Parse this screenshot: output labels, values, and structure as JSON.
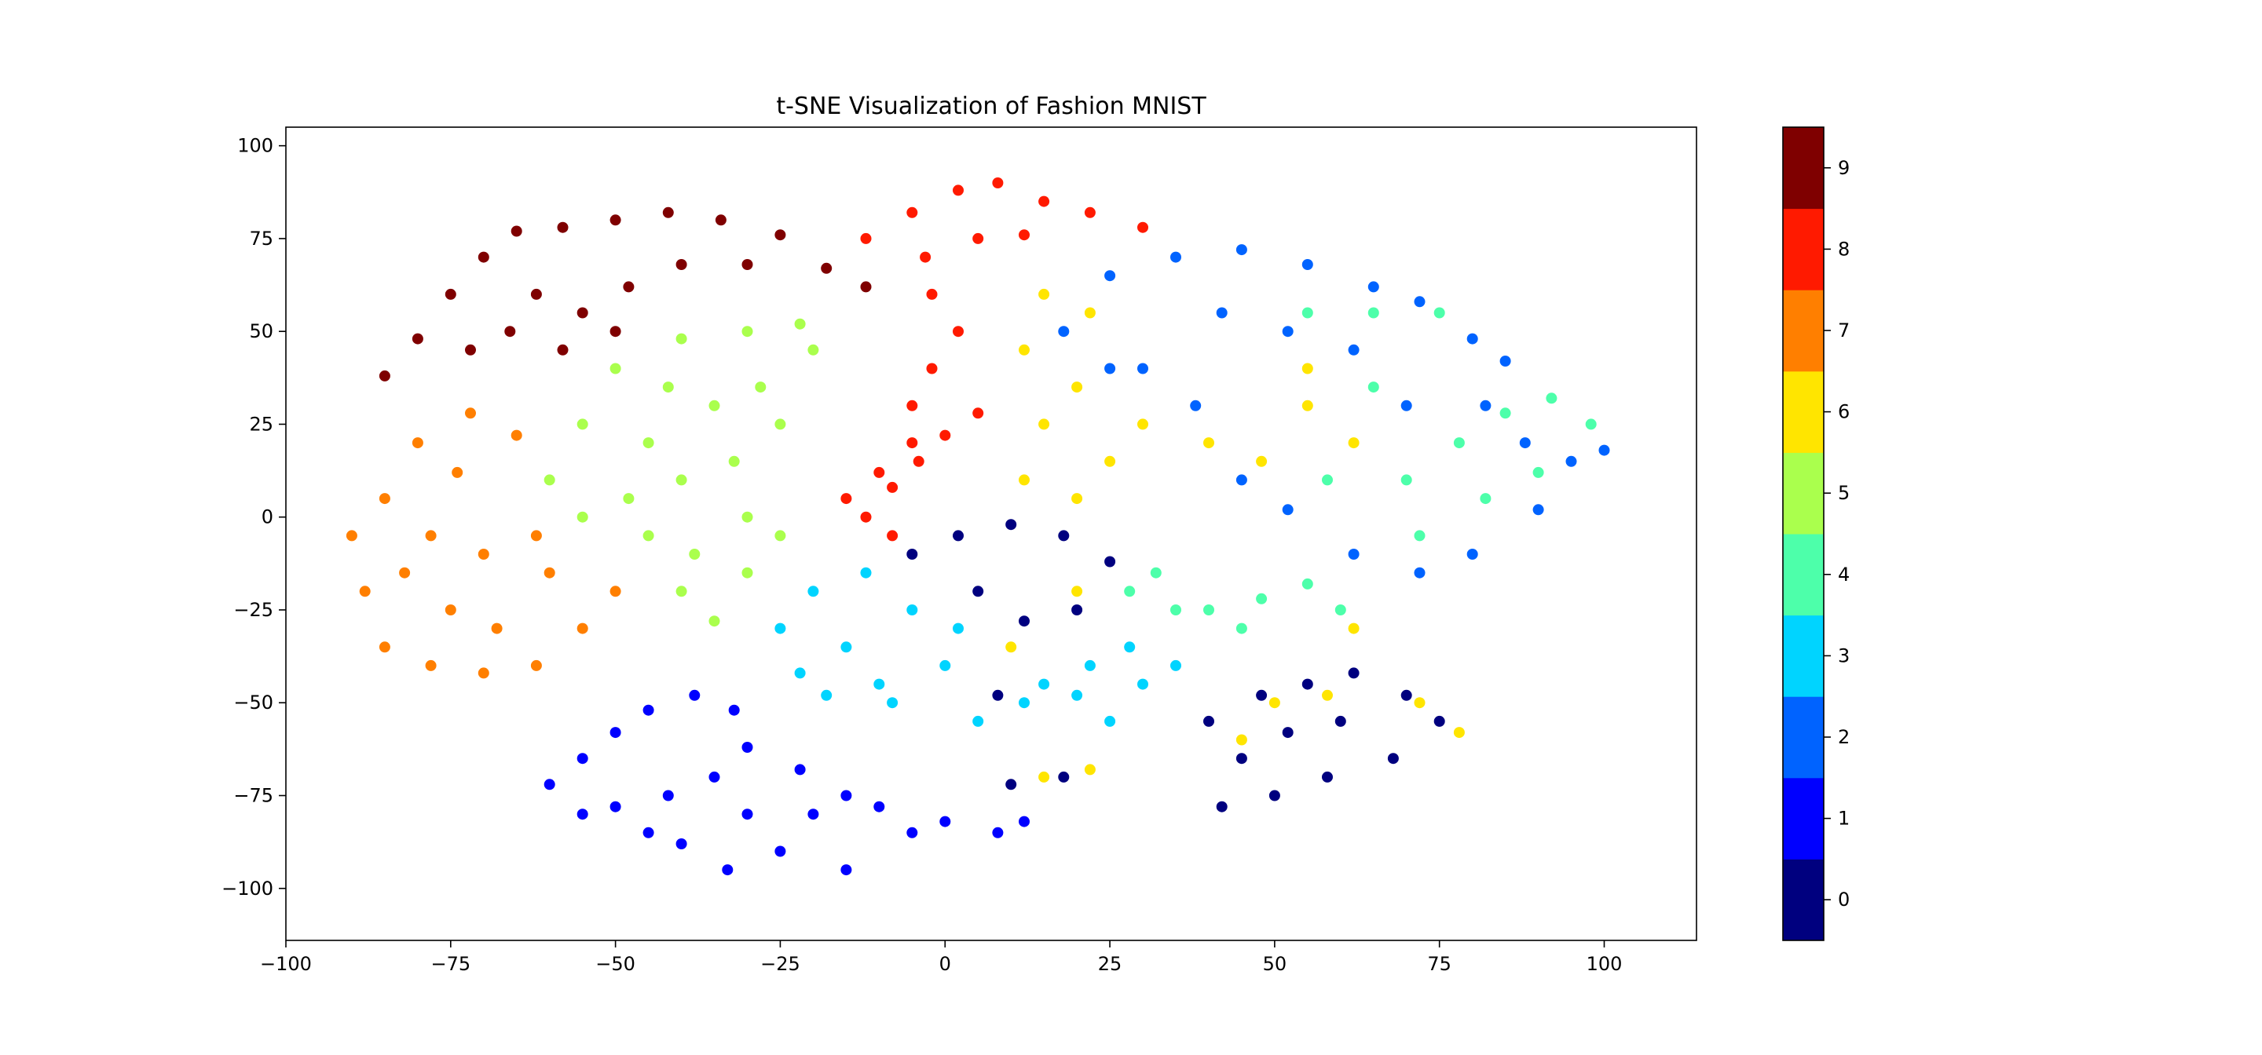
{
  "chart_data": {
    "type": "scatter",
    "title": "t-SNE Visualization of Fashion MNIST",
    "xlabel": "",
    "ylabel": "",
    "xlim": [
      -100,
      114
    ],
    "ylim": [
      -114,
      105
    ],
    "x_ticks": [
      -100,
      -75,
      -50,
      -25,
      0,
      25,
      50,
      75,
      100
    ],
    "x_tick_labels": [
      "−100",
      "−75",
      "−50",
      "−25",
      "0",
      "25",
      "50",
      "75",
      "100"
    ],
    "y_ticks": [
      -100,
      -75,
      -50,
      -25,
      0,
      25,
      50,
      75,
      100
    ],
    "y_tick_labels": [
      "−100",
      "−75",
      "−50",
      "−25",
      "0",
      "25",
      "50",
      "75",
      "100"
    ],
    "grid": false,
    "legend": "none",
    "colorbar": {
      "labels": [
        "0",
        "1",
        "2",
        "3",
        "4",
        "5",
        "6",
        "7",
        "8",
        "9"
      ],
      "colors": [
        "#00007f",
        "#0000ff",
        "#0063ff",
        "#00d4ff",
        "#4dffaa",
        "#aaff4d",
        "#ffe500",
        "#ff7f00",
        "#ff1a00",
        "#7f0000"
      ]
    },
    "clusters": [
      {
        "label": 9,
        "points": [
          [
            -85,
            38
          ],
          [
            -80,
            48
          ],
          [
            -75,
            60
          ],
          [
            -70,
            70
          ],
          [
            -65,
            77
          ],
          [
            -58,
            78
          ],
          [
            -50,
            80
          ],
          [
            -42,
            82
          ],
          [
            -34,
            80
          ],
          [
            -25,
            76
          ],
          [
            -18,
            67
          ],
          [
            -12,
            62
          ],
          [
            -62,
            60
          ],
          [
            -55,
            55
          ],
          [
            -48,
            62
          ],
          [
            -40,
            68
          ],
          [
            -30,
            68
          ],
          [
            -72,
            45
          ],
          [
            -66,
            50
          ],
          [
            -58,
            45
          ],
          [
            -50,
            50
          ]
        ]
      },
      {
        "label": 5,
        "points": [
          [
            -50,
            40
          ],
          [
            -42,
            35
          ],
          [
            -35,
            30
          ],
          [
            -28,
            35
          ],
          [
            -20,
            45
          ],
          [
            -25,
            25
          ],
          [
            -32,
            15
          ],
          [
            -40,
            10
          ],
          [
            -48,
            5
          ],
          [
            -55,
            0
          ],
          [
            -45,
            -5
          ],
          [
            -38,
            -10
          ],
          [
            -30,
            -15
          ],
          [
            -40,
            -20
          ],
          [
            -35,
            -28
          ],
          [
            -30,
            0
          ],
          [
            -25,
            -5
          ],
          [
            -45,
            20
          ],
          [
            -55,
            25
          ],
          [
            -60,
            10
          ],
          [
            -30,
            50
          ],
          [
            -40,
            48
          ],
          [
            -22,
            52
          ]
        ]
      },
      {
        "label": 7,
        "points": [
          [
            -90,
            -5
          ],
          [
            -88,
            -20
          ],
          [
            -85,
            -35
          ],
          [
            -78,
            -40
          ],
          [
            -70,
            -42
          ],
          [
            -62,
            -40
          ],
          [
            -55,
            -30
          ],
          [
            -50,
            -20
          ],
          [
            -60,
            -15
          ],
          [
            -70,
            -10
          ],
          [
            -78,
            -5
          ],
          [
            -85,
            5
          ],
          [
            -80,
            20
          ],
          [
            -72,
            28
          ],
          [
            -65,
            22
          ],
          [
            -75,
            -25
          ],
          [
            -68,
            -30
          ],
          [
            -82,
            -15
          ],
          [
            -62,
            -5
          ],
          [
            -74,
            12
          ]
        ]
      },
      {
        "label": 8,
        "points": [
          [
            -12,
            0
          ],
          [
            -8,
            8
          ],
          [
            -4,
            15
          ],
          [
            0,
            22
          ],
          [
            5,
            28
          ],
          [
            -2,
            40
          ],
          [
            2,
            50
          ],
          [
            -5,
            30
          ],
          [
            -10,
            12
          ],
          [
            -15,
            5
          ],
          [
            -8,
            -5
          ],
          [
            -5,
            20
          ],
          [
            -2,
            60
          ],
          [
            -12,
            75
          ],
          [
            -5,
            82
          ],
          [
            2,
            88
          ],
          [
            8,
            90
          ],
          [
            15,
            85
          ],
          [
            22,
            82
          ],
          [
            30,
            78
          ],
          [
            12,
            76
          ],
          [
            5,
            75
          ],
          [
            -3,
            70
          ]
        ]
      },
      {
        "label": 1,
        "points": [
          [
            -60,
            -72
          ],
          [
            -55,
            -65
          ],
          [
            -50,
            -58
          ],
          [
            -45,
            -52
          ],
          [
            -38,
            -48
          ],
          [
            -32,
            -52
          ],
          [
            -30,
            -62
          ],
          [
            -35,
            -70
          ],
          [
            -42,
            -75
          ],
          [
            -50,
            -78
          ],
          [
            -55,
            -80
          ],
          [
            -40,
            -88
          ],
          [
            -33,
            -95
          ],
          [
            -25,
            -90
          ],
          [
            -20,
            -80
          ],
          [
            -15,
            -75
          ],
          [
            -10,
            -78
          ],
          [
            -15,
            -95
          ],
          [
            -5,
            -85
          ],
          [
            0,
            -82
          ],
          [
            8,
            -85
          ],
          [
            12,
            -82
          ],
          [
            -45,
            -85
          ],
          [
            -30,
            -80
          ],
          [
            -22,
            -68
          ]
        ]
      },
      {
        "label": 3,
        "points": [
          [
            -25,
            -30
          ],
          [
            -20,
            -20
          ],
          [
            -12,
            -15
          ],
          [
            -5,
            -25
          ],
          [
            0,
            -40
          ],
          [
            -10,
            -45
          ],
          [
            -18,
            -48
          ],
          [
            -22,
            -42
          ],
          [
            5,
            -55
          ],
          [
            12,
            -50
          ],
          [
            20,
            -48
          ],
          [
            25,
            -55
          ],
          [
            30,
            -45
          ],
          [
            35,
            -40
          ],
          [
            28,
            -35
          ],
          [
            -15,
            -35
          ],
          [
            2,
            -30
          ],
          [
            15,
            -45
          ],
          [
            -8,
            -50
          ],
          [
            22,
            -40
          ]
        ]
      },
      {
        "label": 0,
        "points": [
          [
            -5,
            -10
          ],
          [
            2,
            -5
          ],
          [
            10,
            -2
          ],
          [
            18,
            -5
          ],
          [
            25,
            -12
          ],
          [
            20,
            -25
          ],
          [
            12,
            -28
          ],
          [
            5,
            -20
          ],
          [
            40,
            -55
          ],
          [
            48,
            -48
          ],
          [
            55,
            -45
          ],
          [
            62,
            -42
          ],
          [
            70,
            -48
          ],
          [
            75,
            -55
          ],
          [
            68,
            -65
          ],
          [
            58,
            -70
          ],
          [
            50,
            -75
          ],
          [
            42,
            -78
          ],
          [
            45,
            -65
          ],
          [
            60,
            -55
          ],
          [
            10,
            -72
          ],
          [
            18,
            -70
          ],
          [
            8,
            -48
          ],
          [
            52,
            -58
          ]
        ]
      },
      {
        "label": 6,
        "points": [
          [
            15,
            60
          ],
          [
            22,
            55
          ],
          [
            12,
            45
          ],
          [
            20,
            35
          ],
          [
            15,
            25
          ],
          [
            25,
            15
          ],
          [
            12,
            10
          ],
          [
            20,
            5
          ],
          [
            30,
            25
          ],
          [
            40,
            20
          ],
          [
            48,
            15
          ],
          [
            55,
            30
          ],
          [
            62,
            20
          ],
          [
            50,
            -50
          ],
          [
            45,
            -60
          ],
          [
            58,
            -48
          ],
          [
            72,
            -50
          ],
          [
            78,
            -58
          ],
          [
            15,
            -70
          ],
          [
            22,
            -68
          ],
          [
            10,
            -35
          ],
          [
            20,
            -20
          ],
          [
            62,
            -30
          ],
          [
            55,
            40
          ]
        ]
      },
      {
        "label": 2,
        "points": [
          [
            18,
            50
          ],
          [
            25,
            65
          ],
          [
            35,
            70
          ],
          [
            45,
            72
          ],
          [
            55,
            68
          ],
          [
            65,
            62
          ],
          [
            72,
            58
          ],
          [
            80,
            48
          ],
          [
            85,
            42
          ],
          [
            82,
            30
          ],
          [
            88,
            20
          ],
          [
            95,
            15
          ],
          [
            100,
            18
          ],
          [
            90,
            2
          ],
          [
            80,
            -10
          ],
          [
            72,
            -15
          ],
          [
            62,
            -10
          ],
          [
            52,
            2
          ],
          [
            45,
            10
          ],
          [
            38,
            30
          ],
          [
            30,
            40
          ],
          [
            25,
            40
          ],
          [
            52,
            50
          ],
          [
            62,
            45
          ],
          [
            42,
            55
          ],
          [
            70,
            30
          ]
        ]
      },
      {
        "label": 4,
        "points": [
          [
            32,
            -15
          ],
          [
            40,
            -25
          ],
          [
            48,
            -22
          ],
          [
            55,
            -18
          ],
          [
            60,
            -25
          ],
          [
            45,
            -30
          ],
          [
            35,
            -25
          ],
          [
            28,
            -20
          ],
          [
            70,
            10
          ],
          [
            78,
            20
          ],
          [
            85,
            28
          ],
          [
            92,
            32
          ],
          [
            98,
            25
          ],
          [
            65,
            35
          ],
          [
            58,
            10
          ],
          [
            72,
            -5
          ],
          [
            55,
            55
          ],
          [
            65,
            55
          ],
          [
            75,
            55
          ],
          [
            82,
            5
          ],
          [
            90,
            12
          ]
        ]
      }
    ]
  }
}
